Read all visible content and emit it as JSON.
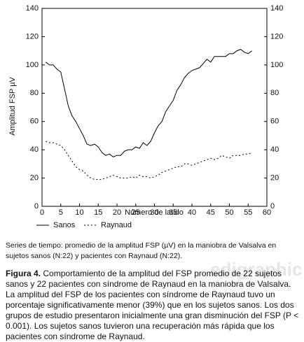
{
  "chart_data": {
    "type": "line",
    "x_label": "Número de latido",
    "y_label": "Amplitud FSP µV",
    "x": [
      1,
      2,
      3,
      4,
      5,
      6,
      7,
      8,
      9,
      10,
      11,
      12,
      13,
      14,
      15,
      16,
      17,
      18,
      19,
      20,
      21,
      22,
      23,
      24,
      25,
      26,
      27,
      28,
      29,
      30,
      31,
      32,
      33,
      34,
      35,
      36,
      37,
      38,
      39,
      40,
      41,
      42,
      43,
      44,
      45,
      46,
      47,
      48,
      49,
      50,
      51,
      52,
      53,
      54,
      55,
      56
    ],
    "series": [
      {
        "name": "Sanos",
        "color": "#000000",
        "dash": "solid",
        "values": [
          102,
          100,
          100,
          97,
          95,
          83,
          71,
          64,
          60,
          55,
          50,
          44,
          43,
          44,
          42,
          38,
          36,
          37,
          35,
          36,
          36,
          39,
          40,
          40,
          42,
          41,
          45,
          43,
          46,
          52,
          57,
          60,
          67,
          71,
          75,
          82,
          86,
          91,
          94,
          96,
          97,
          98,
          101,
          104,
          102,
          106,
          106,
          106,
          106,
          108,
          108,
          110,
          111,
          109,
          108,
          110
        ]
      },
      {
        "name": "Raynaud",
        "color": "#000000",
        "dash": "dotted",
        "values": [
          46,
          45,
          45,
          44,
          43,
          40,
          36,
          32,
          28,
          26,
          25,
          22,
          20,
          19,
          19,
          19,
          20,
          21,
          22,
          21,
          20,
          20,
          20,
          21,
          20,
          22,
          21,
          21,
          20,
          21,
          22,
          24,
          25,
          26,
          27,
          28,
          28,
          30,
          30,
          29,
          30,
          31,
          32,
          33,
          34,
          33,
          34,
          36,
          35,
          34,
          36,
          36,
          36,
          37,
          37,
          38
        ]
      }
    ],
    "xlim": [
      0,
      60
    ],
    "xticks": [
      0,
      5,
      10,
      15,
      20,
      25,
      30,
      35,
      40,
      45,
      50,
      55,
      60
    ],
    "ylim": [
      0,
      140
    ],
    "yticks": [
      0,
      20,
      40,
      60,
      80,
      100,
      120,
      140
    ],
    "y2lim": [
      0,
      140
    ],
    "y2ticks": [
      0,
      20,
      40,
      60,
      80,
      100,
      120,
      140
    ],
    "grid": false,
    "legend": "bottom"
  },
  "note": "Series de tiempo: promedio de la amplitud FSP (µV) en la maniobra de Valsalva en sujetos sanos (N:22) y pacientes con Raynaud (N:22).",
  "caption_label": "Figura 4.",
  "caption_text": "Comportamiento de la amplitud del FSP promedio de 22 sujetos sanos y 22 pacientes con síndrome de Raynaud en la maniobra de Valsalva. La amplitud del FSP de los pacientes con síndrome de Raynaud tuvo un porcentaje significativamente menor (39%) que en los sujetos sanos. Los dos grupos de estudio presentaron inicialmente una gran disminución del FSP (P < 0.001). Los sujetos sanos tuvieron una recuperación más rápida que los pacientes con síndrome de Raynaud.",
  "watermark": "edigraphic"
}
